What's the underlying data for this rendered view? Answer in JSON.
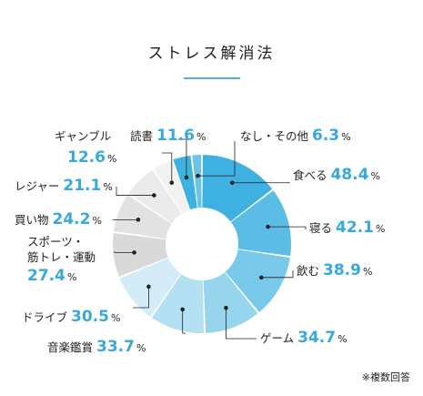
{
  "title": "ストレス解消法",
  "note": "※複数回答",
  "colors": {
    "accent": "#39a9dc",
    "title_rule": "#4fb3de"
  },
  "chart_data": {
    "type": "pie",
    "style": "donut",
    "unit": "%",
    "categories": [
      "食べる",
      "寝る",
      "飲む",
      "ゲーム",
      "音楽鑑賞",
      "ドライブ",
      "スポーツ・筋トレ・運動",
      "買い物",
      "レジャー",
      "ギャンブル",
      "読書",
      "なし・その他"
    ],
    "values": [
      48.4,
      42.1,
      38.9,
      34.7,
      33.7,
      30.5,
      27.4,
      24.2,
      21.1,
      12.6,
      11.6,
      6.3
    ],
    "labels": [
      {
        "lines": [
          "食べる"
        ],
        "value": "48.4",
        "unit": "%"
      },
      {
        "lines": [
          "寝る"
        ],
        "value": "42.1",
        "unit": "%"
      },
      {
        "lines": [
          "飲む"
        ],
        "value": "38.9",
        "unit": "%"
      },
      {
        "lines": [
          "ゲーム"
        ],
        "value": "34.7",
        "unit": "%"
      },
      {
        "lines": [
          "音楽鑑賞"
        ],
        "value": "33.7",
        "unit": "%"
      },
      {
        "lines": [
          "ドライブ"
        ],
        "value": "30.5",
        "unit": "%"
      },
      {
        "lines": [
          "スポーツ・",
          "筋トレ・運動"
        ],
        "value": "27.4",
        "unit": "%"
      },
      {
        "lines": [
          "買い物"
        ],
        "value": "24.2",
        "unit": "%"
      },
      {
        "lines": [
          "レジャー"
        ],
        "value": "21.1",
        "unit": "%"
      },
      {
        "lines": [
          "ギャンブル"
        ],
        "value": "12.6",
        "unit": "%"
      },
      {
        "lines": [
          "読書"
        ],
        "value": "11.6",
        "unit": "%"
      },
      {
        "lines": [
          "なし・その他"
        ],
        "value": "6.3",
        "unit": "%"
      }
    ],
    "colors": [
      "#3eb1e1",
      "#5bbde6",
      "#79c9ea",
      "#97d5ef",
      "#b4e0f3",
      "#d3ecf8",
      "#d9d9d9",
      "#e2e2e2",
      "#ebebeb",
      "#f2f2f2",
      "#3eb1e1",
      "#6cc3e8"
    ]
  }
}
